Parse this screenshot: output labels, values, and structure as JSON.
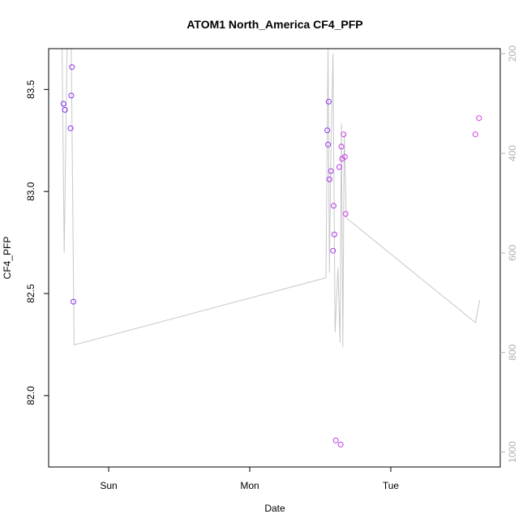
{
  "chart_data": {
    "type": "scatter",
    "title": "ATOM1 North_America CF4_PFP",
    "xlabel": "Date",
    "ylabel": "CF4_PFP",
    "x_ticks": [
      "Sun",
      "Mon",
      "Tue"
    ],
    "y_ticks": [
      "82.0",
      "82.5",
      "83.0",
      "83.5"
    ],
    "y_ticks_right": [
      "200",
      "400",
      "600",
      "800",
      "1000"
    ],
    "ylim": [
      81.65,
      83.7
    ],
    "xlim_days": [
      -0.375,
      2.64
    ],
    "y_right_lim": [
      1030,
      190
    ],
    "grid": false,
    "legend": "none",
    "colors": {
      "line": "#c8c8c8",
      "points_start": "#7a2cf5",
      "points_end": "#e03ce8",
      "axis": "#000000",
      "right_axis": "#b0b0b0"
    },
    "series": [
      {
        "points": [
          {
            "day": -0.32,
            "value": 83.43
          },
          {
            "day": -0.31,
            "value": 83.4
          },
          {
            "day": -0.27,
            "value": 83.31
          },
          {
            "day": -0.265,
            "value": 83.47
          },
          {
            "day": -0.26,
            "value": 83.61
          },
          {
            "day": -0.25,
            "value": 82.46
          },
          {
            "day": 1.55,
            "value": 83.3
          },
          {
            "day": 1.555,
            "value": 83.23
          },
          {
            "day": 1.56,
            "value": 83.44
          },
          {
            "day": 1.565,
            "value": 83.06
          },
          {
            "day": 1.575,
            "value": 83.1
          },
          {
            "day": 1.59,
            "value": 82.71
          },
          {
            "day": 1.595,
            "value": 82.93
          },
          {
            "day": 1.6,
            "value": 82.79
          },
          {
            "day": 1.61,
            "value": 81.78
          },
          {
            "day": 1.635,
            "value": 83.12
          },
          {
            "day": 1.645,
            "value": 81.76
          },
          {
            "day": 1.65,
            "value": 83.22
          },
          {
            "day": 1.655,
            "value": 83.16
          },
          {
            "day": 1.665,
            "value": 83.28
          },
          {
            "day": 1.675,
            "value": 83.17
          },
          {
            "day": 1.68,
            "value": 82.89
          },
          {
            "day": 2.6,
            "value": 83.28
          },
          {
            "day": 2.625,
            "value": 83.36
          }
        ]
      },
      {
        "right_axis": true,
        "points": [
          {
            "day": -0.33,
            "value": 190
          },
          {
            "day": -0.315,
            "value": 600
          },
          {
            "day": -0.295,
            "value": 190
          },
          {
            "day": -0.28,
            "value": 190
          },
          {
            "day": -0.265,
            "value": 190
          },
          {
            "day": -0.245,
            "value": 785
          },
          {
            "day": 1.54,
            "value": 650
          },
          {
            "day": 1.555,
            "value": 190
          },
          {
            "day": 1.565,
            "value": 640
          },
          {
            "day": 1.575,
            "value": 400
          },
          {
            "day": 1.59,
            "value": 200
          },
          {
            "day": 1.605,
            "value": 760
          },
          {
            "day": 1.625,
            "value": 630
          },
          {
            "day": 1.64,
            "value": 780
          },
          {
            "day": 1.65,
            "value": 340
          },
          {
            "day": 1.66,
            "value": 790
          },
          {
            "day": 1.67,
            "value": 360
          },
          {
            "day": 1.685,
            "value": 530
          },
          {
            "day": 2.6,
            "value": 740
          },
          {
            "day": 2.63,
            "value": 695
          }
        ]
      }
    ]
  }
}
